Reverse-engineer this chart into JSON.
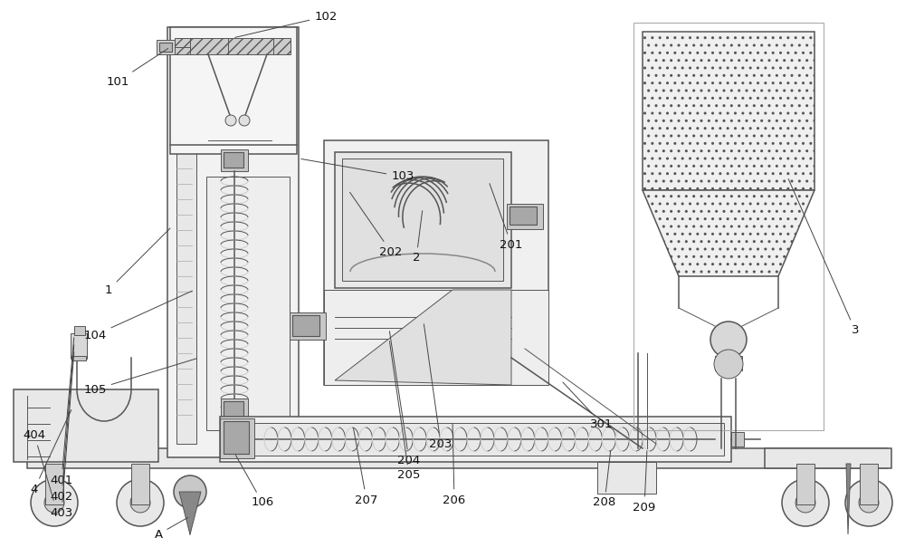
{
  "bg_color": "#ffffff",
  "lc": "#555555",
  "dk": "#333333",
  "fill_light": "#f0f0f0",
  "fill_med": "#e0e0e0",
  "fill_dark": "#c0c0c0",
  "fill_darker": "#aaaaaa",
  "hatch_dot": "..",
  "hatch_line": "///",
  "lw_thin": 0.7,
  "lw_med": 1.1,
  "lw_thick": 1.6,
  "label_fs": 9.5
}
